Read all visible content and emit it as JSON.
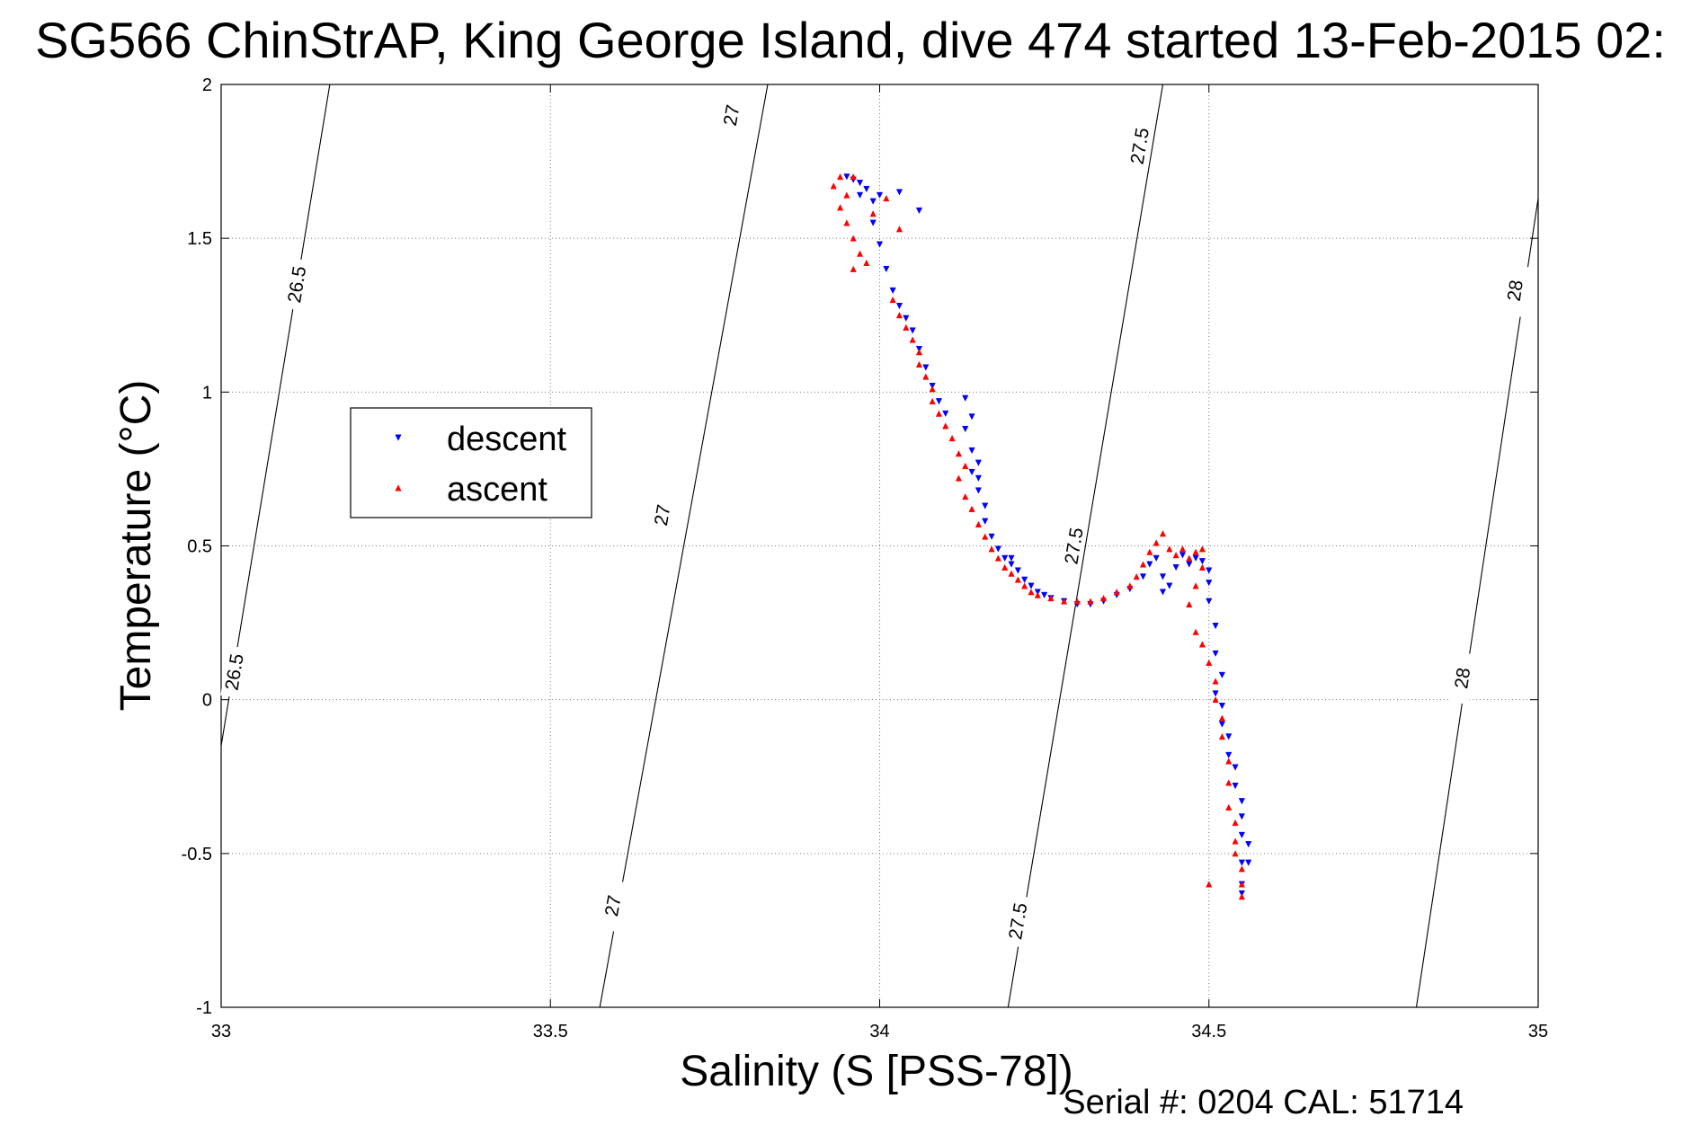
{
  "chart_data": {
    "type": "scatter",
    "title": "SG566 ChinStrAP, King George Island, dive 474 started 13-Feb-2015 02:",
    "xlabel": "Salinity (S [PSS-78])",
    "ylabel": "Temperature (°C)",
    "xlim": [
      33,
      35
    ],
    "ylim": [
      -1,
      2
    ],
    "xticks": [
      33,
      33.5,
      34,
      34.5,
      35
    ],
    "yticks": [
      -1,
      -0.5,
      0,
      0.5,
      1,
      1.5,
      2
    ],
    "xtick_labels": [
      "33",
      "33.5",
      "34",
      "34.5",
      "35"
    ],
    "ytick_labels": [
      "-1",
      "-0.5",
      "0",
      "0.5",
      "1",
      "1.5",
      "2"
    ],
    "grid": true,
    "legend": {
      "position": "left",
      "entries": [
        {
          "label": "descent",
          "color": "#0000ff",
          "marker": "triangle-down"
        },
        {
          "label": "ascent",
          "color": "#ff0000",
          "marker": "triangle-up"
        }
      ]
    },
    "contours": [
      {
        "label": "26.5",
        "points": [
          [
            33.0,
            -0.15
          ],
          [
            33.165,
            2.0
          ]
        ],
        "label_positions": [
          [
            33.02,
            0.09
          ],
          [
            33.115,
            1.35
          ]
        ]
      },
      {
        "label": "27",
        "points": [
          [
            33.575,
            -1.0
          ],
          [
            33.83,
            2.0
          ]
        ],
        "label_positions": [
          [
            33.595,
            -0.67
          ],
          [
            33.67,
            0.6
          ],
          [
            33.775,
            1.9
          ]
        ]
      },
      {
        "label": "27.5",
        "points": [
          [
            34.195,
            -1.0
          ],
          [
            34.43,
            2.0
          ]
        ],
        "label_positions": [
          [
            34.21,
            -0.72
          ],
          [
            34.295,
            0.5
          ],
          [
            34.395,
            1.8
          ]
        ]
      },
      {
        "label": "28",
        "points": [
          [
            34.815,
            -1.0
          ],
          [
            35.0,
            1.63
          ]
        ],
        "label_positions": [
          [
            34.885,
            0.07
          ],
          [
            34.965,
            1.33
          ]
        ]
      }
    ],
    "series": [
      {
        "name": "descent",
        "color": "#0000ff",
        "marker": "triangle-down",
        "points": [
          [
            33.95,
            1.7
          ],
          [
            33.96,
            1.69
          ],
          [
            33.97,
            1.68
          ],
          [
            33.98,
            1.66
          ],
          [
            33.97,
            1.64
          ],
          [
            33.99,
            1.62
          ],
          [
            34.0,
            1.64
          ],
          [
            34.03,
            1.65
          ],
          [
            34.06,
            1.59
          ],
          [
            33.99,
            1.55
          ],
          [
            34.0,
            1.48
          ],
          [
            34.01,
            1.4
          ],
          [
            34.02,
            1.33
          ],
          [
            34.03,
            1.28
          ],
          [
            34.04,
            1.24
          ],
          [
            34.05,
            1.2
          ],
          [
            34.06,
            1.14
          ],
          [
            34.07,
            1.08
          ],
          [
            34.08,
            1.02
          ],
          [
            34.09,
            0.97
          ],
          [
            34.1,
            0.93
          ],
          [
            34.13,
            0.98
          ],
          [
            34.14,
            0.92
          ],
          [
            34.13,
            0.88
          ],
          [
            34.14,
            0.81
          ],
          [
            34.15,
            0.77
          ],
          [
            34.14,
            0.74
          ],
          [
            34.15,
            0.72
          ],
          [
            34.15,
            0.68
          ],
          [
            34.16,
            0.63
          ],
          [
            34.16,
            0.58
          ],
          [
            34.17,
            0.53
          ],
          [
            34.18,
            0.49
          ],
          [
            34.19,
            0.46
          ],
          [
            34.2,
            0.44
          ],
          [
            34.21,
            0.42
          ],
          [
            34.2,
            0.46
          ],
          [
            34.22,
            0.39
          ],
          [
            34.23,
            0.37
          ],
          [
            34.24,
            0.35
          ],
          [
            34.25,
            0.34
          ],
          [
            34.26,
            0.33
          ],
          [
            34.28,
            0.32
          ],
          [
            34.3,
            0.31
          ],
          [
            34.32,
            0.31
          ],
          [
            34.34,
            0.32
          ],
          [
            34.36,
            0.34
          ],
          [
            34.38,
            0.36
          ],
          [
            34.4,
            0.4
          ],
          [
            34.41,
            0.44
          ],
          [
            34.42,
            0.46
          ],
          [
            34.43,
            0.4
          ],
          [
            34.43,
            0.35
          ],
          [
            34.44,
            0.37
          ],
          [
            34.45,
            0.43
          ],
          [
            34.46,
            0.47
          ],
          [
            34.47,
            0.44
          ],
          [
            34.48,
            0.46
          ],
          [
            34.49,
            0.45
          ],
          [
            34.5,
            0.42
          ],
          [
            34.5,
            0.38
          ],
          [
            34.5,
            0.32
          ],
          [
            34.51,
            0.24
          ],
          [
            34.51,
            0.15
          ],
          [
            34.52,
            0.08
          ],
          [
            34.51,
            0.02
          ],
          [
            34.52,
            -0.02
          ],
          [
            34.52,
            -0.08
          ],
          [
            34.53,
            -0.12
          ],
          [
            34.53,
            -0.18
          ],
          [
            34.54,
            -0.22
          ],
          [
            34.54,
            -0.28
          ],
          [
            34.55,
            -0.33
          ],
          [
            34.55,
            -0.38
          ],
          [
            34.55,
            -0.44
          ],
          [
            34.56,
            -0.47
          ],
          [
            34.55,
            -0.53
          ],
          [
            34.56,
            -0.53
          ],
          [
            34.55,
            -0.6
          ],
          [
            34.55,
            -0.63
          ]
        ]
      },
      {
        "name": "ascent",
        "color": "#ff0000",
        "marker": "triangle-up",
        "points": [
          [
            33.94,
            1.7
          ],
          [
            33.96,
            1.7
          ],
          [
            33.93,
            1.67
          ],
          [
            33.95,
            1.64
          ],
          [
            33.94,
            1.6
          ],
          [
            33.95,
            1.55
          ],
          [
            33.96,
            1.5
          ],
          [
            33.97,
            1.45
          ],
          [
            33.96,
            1.4
          ],
          [
            33.98,
            1.42
          ],
          [
            33.99,
            1.58
          ],
          [
            34.01,
            1.63
          ],
          [
            34.03,
            1.53
          ],
          [
            34.02,
            1.3
          ],
          [
            34.03,
            1.25
          ],
          [
            34.04,
            1.21
          ],
          [
            34.05,
            1.17
          ],
          [
            34.06,
            1.13
          ],
          [
            34.06,
            1.09
          ],
          [
            34.07,
            1.05
          ],
          [
            34.08,
            1.01
          ],
          [
            34.08,
            0.97
          ],
          [
            34.09,
            0.93
          ],
          [
            34.1,
            0.89
          ],
          [
            34.11,
            0.85
          ],
          [
            34.12,
            0.8
          ],
          [
            34.13,
            0.76
          ],
          [
            34.12,
            0.72
          ],
          [
            34.13,
            0.66
          ],
          [
            34.14,
            0.62
          ],
          [
            34.15,
            0.57
          ],
          [
            34.16,
            0.53
          ],
          [
            34.17,
            0.49
          ],
          [
            34.18,
            0.46
          ],
          [
            34.19,
            0.43
          ],
          [
            34.2,
            0.41
          ],
          [
            34.21,
            0.39
          ],
          [
            34.22,
            0.37
          ],
          [
            34.23,
            0.35
          ],
          [
            34.24,
            0.34
          ],
          [
            34.26,
            0.33
          ],
          [
            34.28,
            0.32
          ],
          [
            34.3,
            0.32
          ],
          [
            34.32,
            0.32
          ],
          [
            34.34,
            0.33
          ],
          [
            34.36,
            0.35
          ],
          [
            34.38,
            0.37
          ],
          [
            34.39,
            0.4
          ],
          [
            34.4,
            0.44
          ],
          [
            34.41,
            0.48
          ],
          [
            34.42,
            0.51
          ],
          [
            34.43,
            0.54
          ],
          [
            34.44,
            0.49
          ],
          [
            34.45,
            0.47
          ],
          [
            34.46,
            0.49
          ],
          [
            34.47,
            0.46
          ],
          [
            34.48,
            0.48
          ],
          [
            34.49,
            0.49
          ],
          [
            34.49,
            0.43
          ],
          [
            34.48,
            0.37
          ],
          [
            34.47,
            0.31
          ],
          [
            34.48,
            0.22
          ],
          [
            34.49,
            0.18
          ],
          [
            34.5,
            0.12
          ],
          [
            34.51,
            0.06
          ],
          [
            34.51,
            0.0
          ],
          [
            34.52,
            -0.06
          ],
          [
            34.52,
            -0.12
          ],
          [
            34.53,
            -0.2
          ],
          [
            34.53,
            -0.27
          ],
          [
            34.53,
            -0.35
          ],
          [
            34.54,
            -0.4
          ],
          [
            34.54,
            -0.46
          ],
          [
            34.54,
            -0.5
          ],
          [
            34.55,
            -0.55
          ],
          [
            34.55,
            -0.6
          ],
          [
            34.55,
            -0.64
          ],
          [
            34.5,
            -0.6
          ]
        ]
      }
    ]
  },
  "footer": {
    "text": "Serial #: 0204  CAL: 51714"
  }
}
